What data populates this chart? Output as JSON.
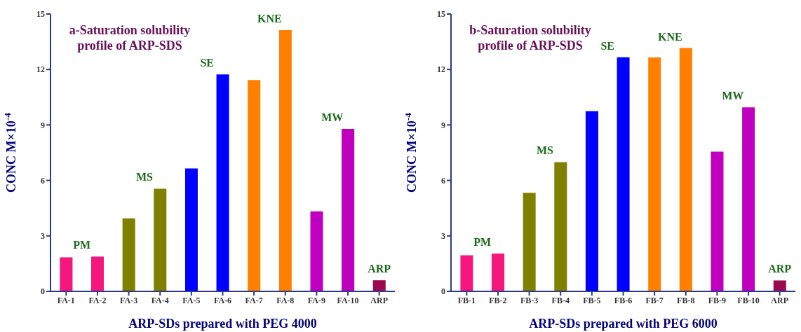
{
  "chart_data": [
    {
      "type": "bar",
      "title": "a-Saturation solubility profile of ARP-SDS",
      "xlabel": "ARP-SDs prepared with PEG 4000",
      "ylabel": "CONC M×10$^{-4}$",
      "categories": [
        "FA-1",
        "FA-2",
        "FA-3",
        "FA-4",
        "FA-5",
        "FA-6",
        "FA-7",
        "FA-8",
        "FA-9",
        "FA-10",
        "ARP"
      ],
      "values": [
        1.84,
        1.88,
        3.95,
        5.55,
        6.65,
        11.73,
        11.43,
        14.13,
        4.33,
        8.79,
        0.6
      ],
      "colors": [
        "#f5167e",
        "#f5167e",
        "#808000",
        "#808000",
        "#0000ff",
        "#0000ff",
        "#ff8000",
        "#ff8000",
        "#bf00bf",
        "#bf00bf",
        "#9b0a4e"
      ],
      "ylim": [
        0,
        15
      ],
      "yticks": [
        0,
        3,
        6,
        9,
        12,
        15
      ],
      "annotations": [
        "PM",
        "MS",
        "SE",
        "KNE",
        "MW",
        "ARP"
      ]
    },
    {
      "type": "bar",
      "title": "b-Saturation solubility profile of ARP-SDS",
      "xlabel": "ARP-SDs prepared with PEG 6000",
      "ylabel": "CONC M×10$^{-4}$",
      "categories": [
        "FB-1",
        "FB-2",
        "FB-3",
        "FB-4",
        "FB-5",
        "FB-6",
        "FB-7",
        "FB-8",
        "FB-9",
        "FB-10",
        "ARP"
      ],
      "values": [
        1.95,
        2.05,
        5.33,
        6.99,
        9.74,
        12.66,
        12.65,
        13.16,
        7.56,
        9.95,
        0.59
      ],
      "colors": [
        "#f5167e",
        "#f5167e",
        "#808000",
        "#808000",
        "#0000ff",
        "#0000ff",
        "#ff8000",
        "#ff8000",
        "#bf00bf",
        "#bf00bf",
        "#9b0a4e"
      ],
      "ylim": [
        0,
        15
      ],
      "yticks": [
        0,
        3,
        6,
        9,
        12,
        15
      ],
      "annotations": [
        "PM",
        "MS",
        "SE",
        "KNE",
        "MW",
        "ARP"
      ]
    }
  ]
}
